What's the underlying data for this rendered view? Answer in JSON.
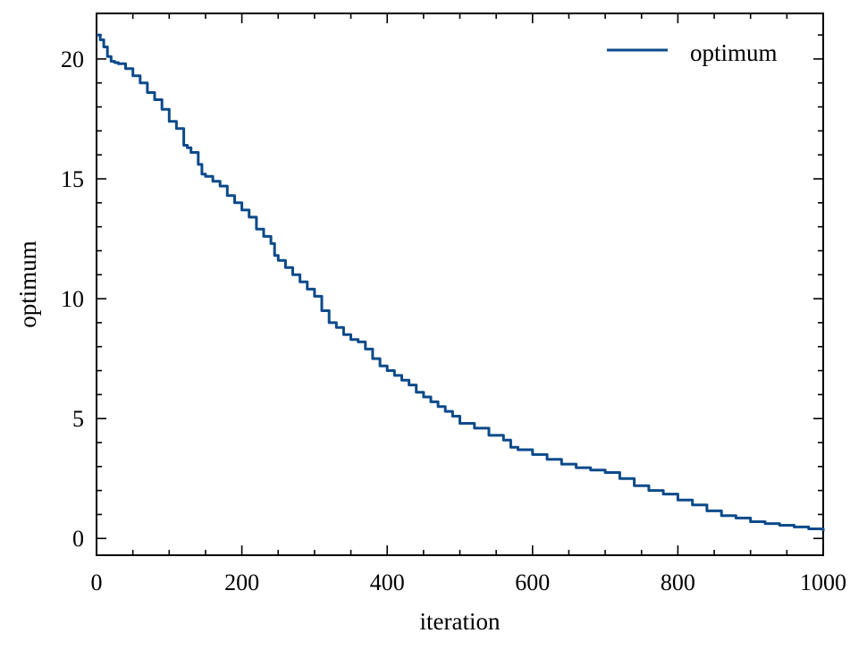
{
  "chart_data": {
    "type": "line",
    "title": "",
    "xlabel": "iteration",
    "ylabel": "optimum",
    "xlim": [
      0,
      1000
    ],
    "ylim": [
      -0.7,
      21.9
    ],
    "x_ticks": [
      0,
      200,
      400,
      600,
      800,
      1000
    ],
    "y_ticks": [
      0,
      5,
      10,
      15,
      20
    ],
    "x_tick_labels": [
      "0",
      "200",
      "400",
      "600",
      "800",
      "1000"
    ],
    "y_tick_labels": [
      "0",
      "5",
      "10",
      "15",
      "20"
    ],
    "grid": false,
    "legend_position": "top-right",
    "series": [
      {
        "name": "optimum",
        "color": "#0C4A8A",
        "x": [
          0,
          5,
          10,
          15,
          20,
          25,
          30,
          40,
          50,
          60,
          70,
          80,
          90,
          100,
          110,
          120,
          125,
          130,
          140,
          145,
          150,
          160,
          170,
          180,
          190,
          200,
          210,
          220,
          230,
          240,
          245,
          250,
          260,
          270,
          280,
          290,
          300,
          310,
          320,
          330,
          340,
          350,
          360,
          370,
          380,
          390,
          400,
          410,
          420,
          430,
          440,
          450,
          460,
          470,
          480,
          490,
          500,
          520,
          540,
          560,
          570,
          580,
          600,
          620,
          640,
          660,
          680,
          700,
          720,
          740,
          760,
          780,
          800,
          820,
          840,
          860,
          880,
          900,
          920,
          940,
          960,
          980,
          1000
        ],
        "y": [
          21.0,
          20.8,
          20.5,
          20.1,
          19.9,
          19.85,
          19.8,
          19.6,
          19.3,
          19.0,
          18.6,
          18.3,
          17.9,
          17.4,
          17.1,
          16.4,
          16.3,
          16.1,
          15.6,
          15.2,
          15.1,
          14.9,
          14.7,
          14.3,
          14.0,
          13.7,
          13.4,
          12.9,
          12.6,
          12.3,
          11.8,
          11.6,
          11.3,
          11.0,
          10.7,
          10.4,
          10.1,
          9.5,
          9.0,
          8.8,
          8.5,
          8.3,
          8.2,
          7.9,
          7.5,
          7.2,
          7.0,
          6.8,
          6.6,
          6.4,
          6.1,
          5.9,
          5.7,
          5.5,
          5.3,
          5.1,
          4.8,
          4.6,
          4.3,
          4.1,
          3.8,
          3.7,
          3.5,
          3.3,
          3.1,
          2.95,
          2.85,
          2.75,
          2.5,
          2.2,
          2.0,
          1.85,
          1.6,
          1.4,
          1.15,
          0.95,
          0.85,
          0.7,
          0.62,
          0.55,
          0.48,
          0.4,
          0.3
        ]
      }
    ]
  }
}
